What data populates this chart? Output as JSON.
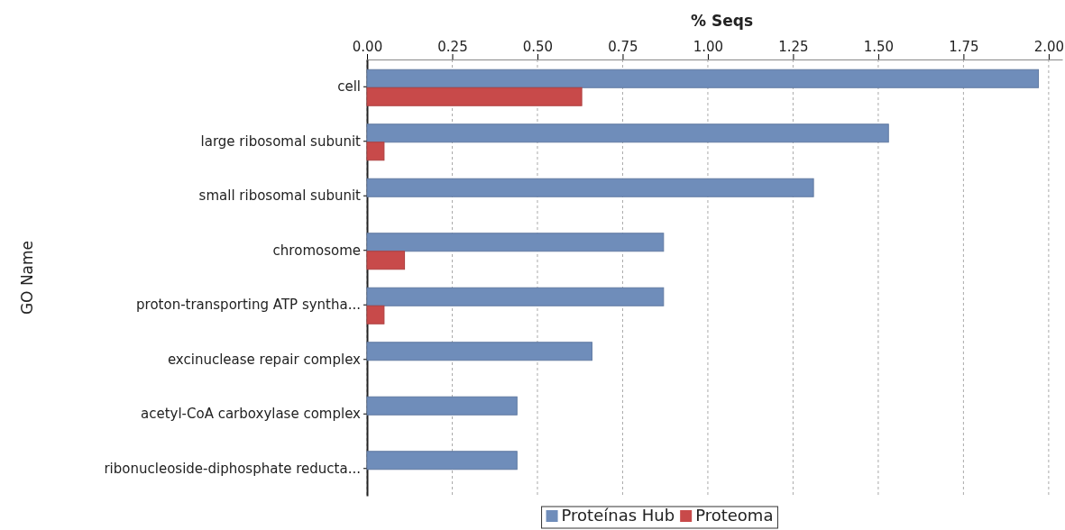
{
  "chart_data": {
    "type": "bar",
    "orientation": "horizontal",
    "xlabel": "% Seqs",
    "ylabel": "GO Name",
    "categories": [
      "cell",
      "large ribosomal subunit",
      "small ribosomal subunit",
      "chromosome",
      "proton-transporting ATP syntha...",
      "excinuclease repair complex",
      "acetyl-CoA carboxylase complex",
      "ribonucleoside-diphosphate reducta..."
    ],
    "series": [
      {
        "name": "Proteínas Hub",
        "color": "#6f8dba",
        "values": [
          1.97,
          1.53,
          1.31,
          0.87,
          0.87,
          0.66,
          0.44,
          0.44
        ]
      },
      {
        "name": "Proteoma",
        "color": "#c84a4a",
        "values": [
          0.63,
          0.05,
          0,
          0.11,
          0.05,
          0,
          0,
          0
        ]
      }
    ],
    "xlim": [
      0,
      2.04
    ],
    "xticks": [
      {
        "value": 0,
        "label": "0.00"
      },
      {
        "value": 0.25,
        "label": "0.25"
      },
      {
        "value": 0.5,
        "label": "0.50"
      },
      {
        "value": 0.75,
        "label": "0.75"
      },
      {
        "value": 1,
        "label": "1.00"
      },
      {
        "value": 1.25,
        "label": "1.25"
      },
      {
        "value": 1.5,
        "label": "1.50"
      },
      {
        "value": 1.75,
        "label": "1.75"
      },
      {
        "value": 2,
        "label": "2.00"
      }
    ],
    "grid": "x",
    "legend": "bottom"
  }
}
